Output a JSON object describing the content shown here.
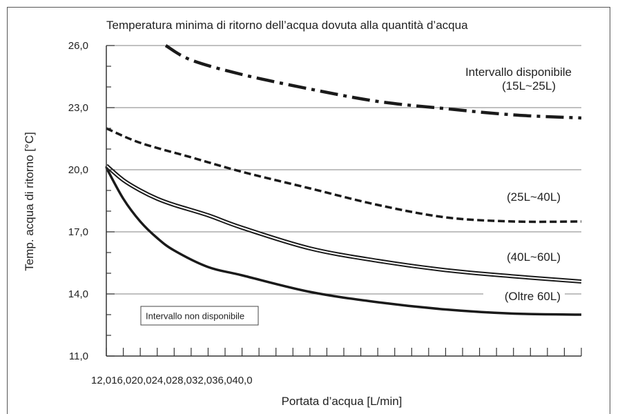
{
  "chart_data": {
    "type": "line",
    "title": "Temperatura minima di ritorno dell’acqua dovuta alla quantità d’acqua",
    "xlabel": "Portata d’acqua [L/min]",
    "ylabel": "Temp. acqua di ritorno [°C]",
    "x_tick_text": "12,016,020,024,028,032,036,040,0",
    "y_ticks": [
      "26,0",
      "23,0",
      "20,0",
      "17,0",
      "14,0",
      "11,0"
    ],
    "y_tick_values": [
      26,
      23,
      20,
      17,
      14,
      11
    ],
    "xlim": [
      12,
      40
    ],
    "ylim": [
      11,
      26
    ],
    "grid": "horizontal",
    "region_label": "Intervallo disponibile",
    "unavailable_label": "Intervallo non disponibile",
    "series": [
      {
        "name": "(15L~25L)",
        "style": "dashdot",
        "x": [
          15.5,
          17,
          20,
          24,
          28,
          32,
          36,
          40
        ],
        "y": [
          26.0,
          25.3,
          24.6,
          23.9,
          23.3,
          22.95,
          22.65,
          22.5
        ]
      },
      {
        "name": "(25L~40L)",
        "style": "dashed",
        "x": [
          12,
          14,
          17,
          20,
          24,
          28,
          32,
          36,
          40
        ],
        "y": [
          22.0,
          21.3,
          20.6,
          19.9,
          19.1,
          18.3,
          17.7,
          17.5,
          17.5
        ]
      },
      {
        "name": "(40L~60L)",
        "style": "double",
        "x": [
          12,
          13,
          14,
          15,
          16,
          18,
          20,
          24,
          28,
          32,
          36,
          40
        ],
        "y": [
          20.2,
          19.5,
          19.0,
          18.6,
          18.3,
          17.8,
          17.2,
          16.2,
          15.6,
          15.15,
          14.85,
          14.6
        ]
      },
      {
        "name": "(Oltre 60L)",
        "style": "solid-thick",
        "x": [
          12,
          13,
          14,
          15,
          16,
          18,
          20,
          24,
          28,
          32,
          36,
          40
        ],
        "y": [
          20.1,
          18.6,
          17.5,
          16.7,
          16.1,
          15.3,
          14.9,
          14.1,
          13.6,
          13.25,
          13.05,
          13.0
        ]
      }
    ],
    "colors": {
      "line": "#1a1a1a",
      "grid": "#9a9a9a",
      "axis": "#333333"
    }
  }
}
